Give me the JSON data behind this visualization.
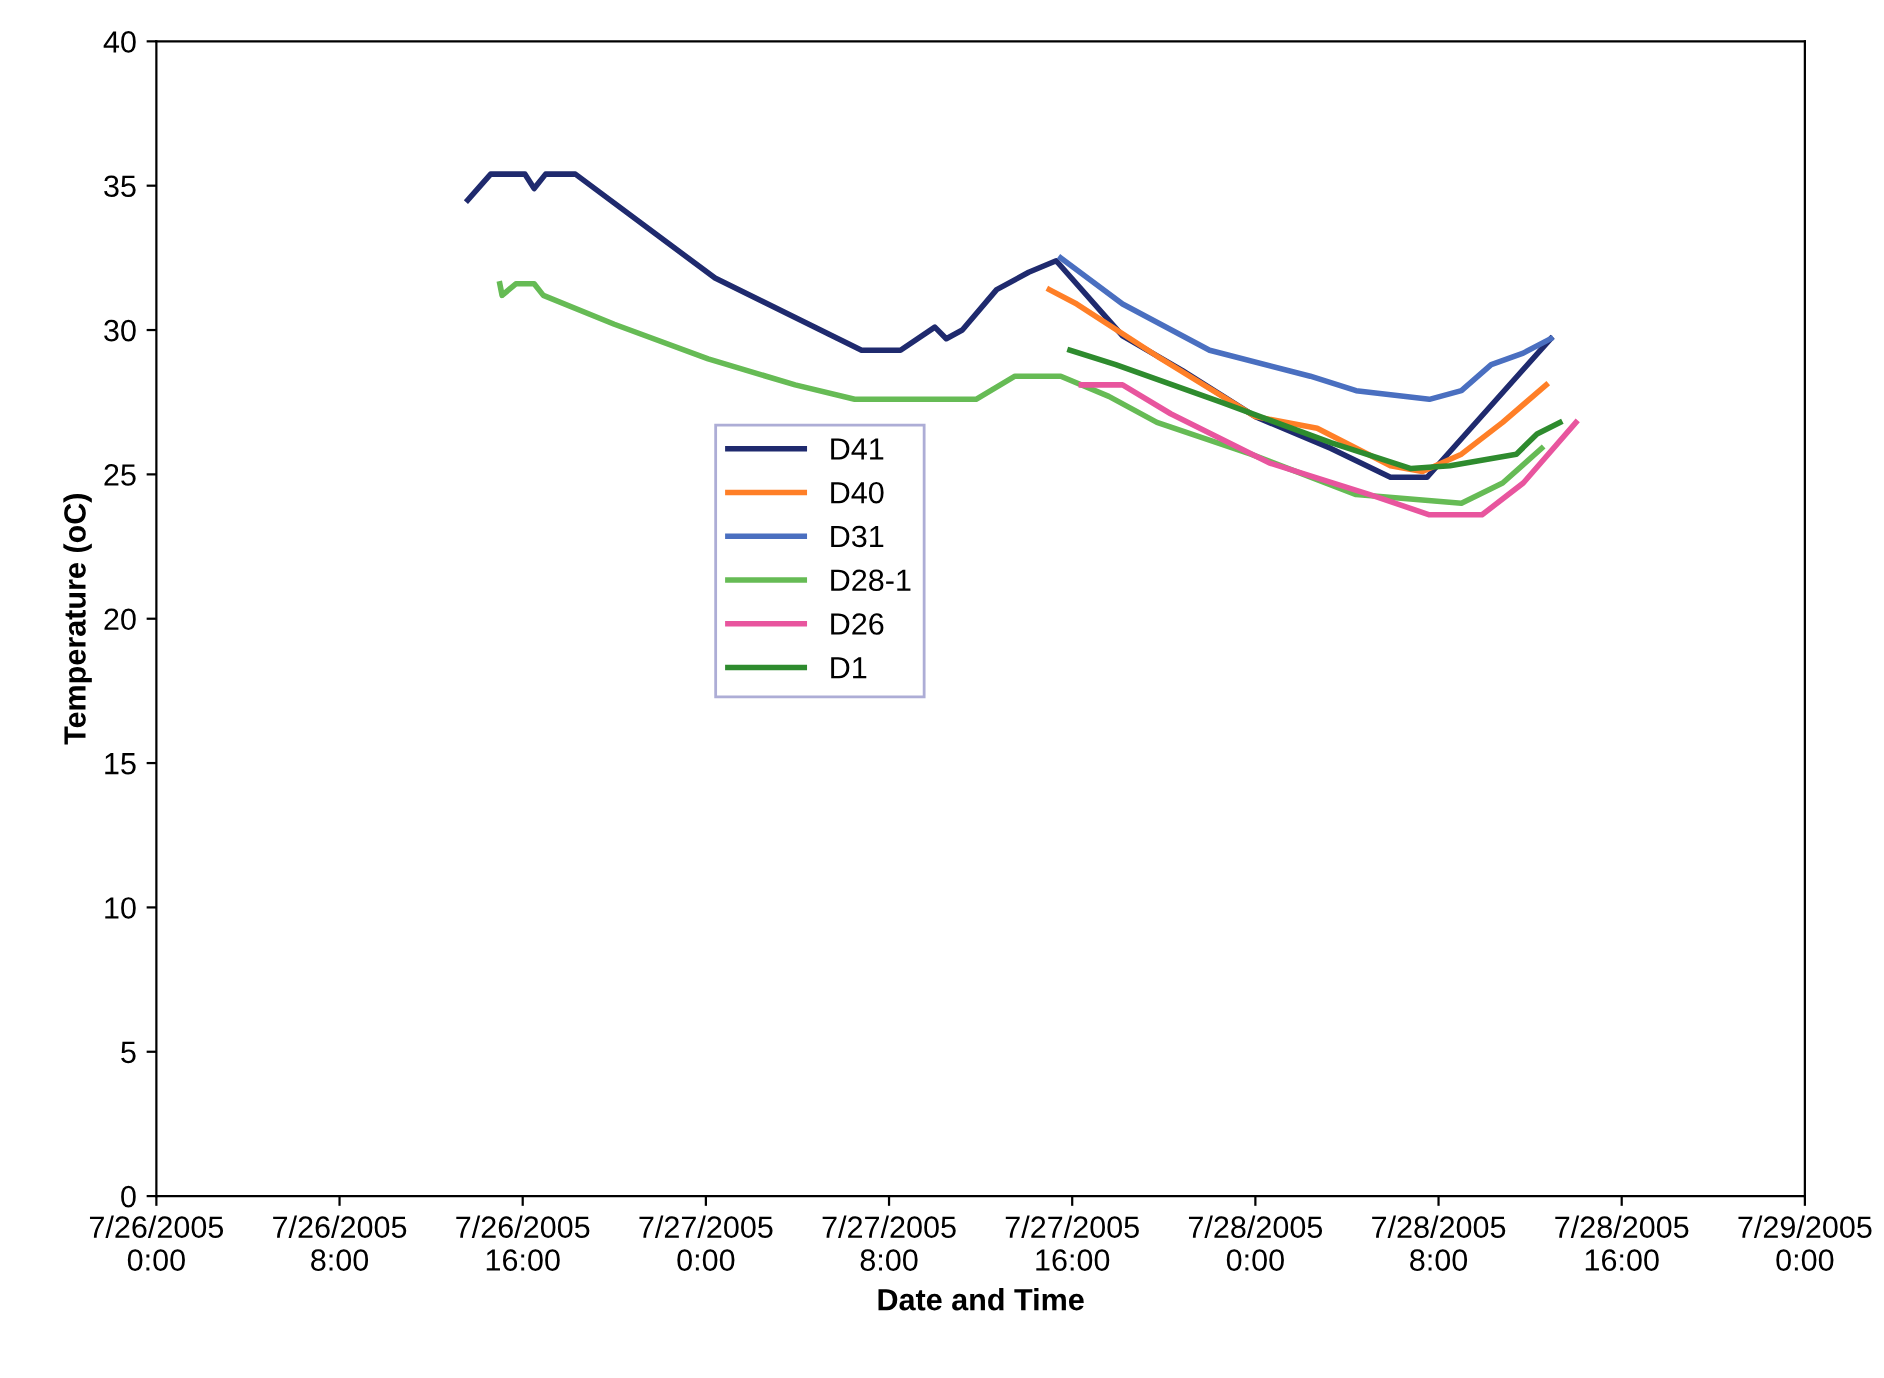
{
  "chart_data": {
    "type": "line",
    "xlabel": "Date and Time",
    "ylabel": "Temperature (oC)",
    "xlim": [
      "2005-07-26T00:00",
      "2005-07-29T00:00"
    ],
    "xticks": [
      {
        "value": "2005-07-26T00:00",
        "label": "7/26/2005\n0:00"
      },
      {
        "value": "2005-07-26T08:00",
        "label": "7/26/2005\n8:00"
      },
      {
        "value": "2005-07-26T16:00",
        "label": "7/26/2005\n16:00"
      },
      {
        "value": "2005-07-27T00:00",
        "label": "7/27/2005\n0:00"
      },
      {
        "value": "2005-07-27T08:00",
        "label": "7/27/2005\n8:00"
      },
      {
        "value": "2005-07-27T16:00",
        "label": "7/27/2005\n16:00"
      },
      {
        "value": "2005-07-28T00:00",
        "label": "7/28/2005\n0:00"
      },
      {
        "value": "2005-07-28T08:00",
        "label": "7/28/2005\n8:00"
      },
      {
        "value": "2005-07-28T16:00",
        "label": "7/28/2005\n16:00"
      },
      {
        "value": "2005-07-29T00:00",
        "label": "7/29/2005\n0:00"
      }
    ],
    "ylim": [
      0,
      40
    ],
    "yticks": [
      0,
      5,
      10,
      15,
      20,
      25,
      30,
      35,
      40
    ],
    "grid": false,
    "legend": "center left",
    "marker": "none",
    "line_style": "solid",
    "series": [
      {
        "name": "D41",
        "color": "#1f2a6e",
        "x": [
          "2005-07-26T13:36",
          "2005-07-26T14:36",
          "2005-07-26T16:06",
          "2005-07-26T16:30",
          "2005-07-26T17:00",
          "2005-07-26T18:18",
          "2005-07-27T00:24",
          "2005-07-27T06:48",
          "2005-07-27T08:30",
          "2005-07-27T10:00",
          "2005-07-27T10:30",
          "2005-07-27T11:12",
          "2005-07-27T12:42",
          "2005-07-27T14:06",
          "2005-07-27T15:18",
          "2005-07-27T18:12",
          "2005-07-27T20:48",
          "2005-07-28T00:00",
          "2005-07-28T03:18",
          "2005-07-28T05:54",
          "2005-07-28T07:30",
          "2005-07-28T12:54"
        ],
        "values": [
          34.5,
          35.4,
          35.4,
          34.9,
          35.4,
          35.4,
          31.8,
          29.3,
          29.3,
          30.1,
          29.7,
          30.0,
          31.4,
          32.0,
          32.4,
          29.8,
          28.6,
          27.0,
          25.9,
          24.9,
          24.9,
          29.7
        ]
      },
      {
        "name": "D40",
        "color": "#ff7f27",
        "x": [
          "2005-07-27T15:00",
          "2005-07-27T16:12",
          "2005-07-27T19:42",
          "2005-07-28T00:00",
          "2005-07-28T02:42",
          "2005-07-28T05:54",
          "2005-07-28T07:18",
          "2005-07-28T09:00",
          "2005-07-28T10:48",
          "2005-07-28T12:42"
        ],
        "values": [
          31.4,
          30.9,
          29.1,
          27.0,
          26.6,
          25.3,
          25.1,
          25.7,
          26.8,
          28.1
        ]
      },
      {
        "name": "D31",
        "color": "#4a6fc0",
        "x": [
          "2005-07-27T15:30",
          "2005-07-27T18:12",
          "2005-07-27T22:00",
          "2005-07-28T02:24",
          "2005-07-28T04:24",
          "2005-07-28T07:36",
          "2005-07-28T09:00",
          "2005-07-28T10:18",
          "2005-07-28T11:42",
          "2005-07-28T12:54"
        ],
        "values": [
          32.5,
          30.9,
          29.3,
          28.4,
          27.9,
          27.6,
          27.9,
          28.8,
          29.2,
          29.7
        ]
      },
      {
        "name": "D28-1",
        "color": "#66bb55",
        "x": [
          "2005-07-26T15:00",
          "2005-07-26T15:06",
          "2005-07-26T15:42",
          "2005-07-26T16:30",
          "2005-07-26T16:54",
          "2005-07-26T20:00",
          "2005-07-27T00:06",
          "2005-07-27T03:54",
          "2005-07-27T06:30",
          "2005-07-27T11:48",
          "2005-07-27T13:30",
          "2005-07-27T15:30",
          "2005-07-27T17:36",
          "2005-07-27T19:42",
          "2005-07-27T23:48",
          "2005-07-28T04:24",
          "2005-07-28T09:00",
          "2005-07-28T10:48",
          "2005-07-28T12:30"
        ],
        "values": [
          31.6,
          31.2,
          31.6,
          31.6,
          31.2,
          30.2,
          29.0,
          28.1,
          27.6,
          27.6,
          28.4,
          28.4,
          27.7,
          26.8,
          25.7,
          24.3,
          24.0,
          24.7,
          25.9
        ]
      },
      {
        "name": "D26",
        "color": "#e8559e",
        "x": [
          "2005-07-27T16:24",
          "2005-07-27T18:12",
          "2005-07-27T20:18",
          "2005-07-28T00:36",
          "2005-07-28T05:00",
          "2005-07-28T07:36",
          "2005-07-28T09:54",
          "2005-07-28T11:42",
          "2005-07-28T14:00"
        ],
        "values": [
          28.1,
          28.1,
          27.1,
          25.4,
          24.3,
          23.6,
          23.6,
          24.7,
          26.8
        ]
      },
      {
        "name": "D1",
        "color": "#2e8b2e",
        "x": [
          "2005-07-27T15:54",
          "2005-07-27T17:54",
          "2005-07-27T22:30",
          "2005-07-28T03:18",
          "2005-07-28T06:48",
          "2005-07-28T08:30",
          "2005-07-28T11:24",
          "2005-07-28T12:18",
          "2005-07-28T13:18"
        ],
        "values": [
          29.3,
          28.8,
          27.5,
          26.1,
          25.2,
          25.3,
          25.7,
          26.4,
          26.8
        ]
      }
    ]
  }
}
